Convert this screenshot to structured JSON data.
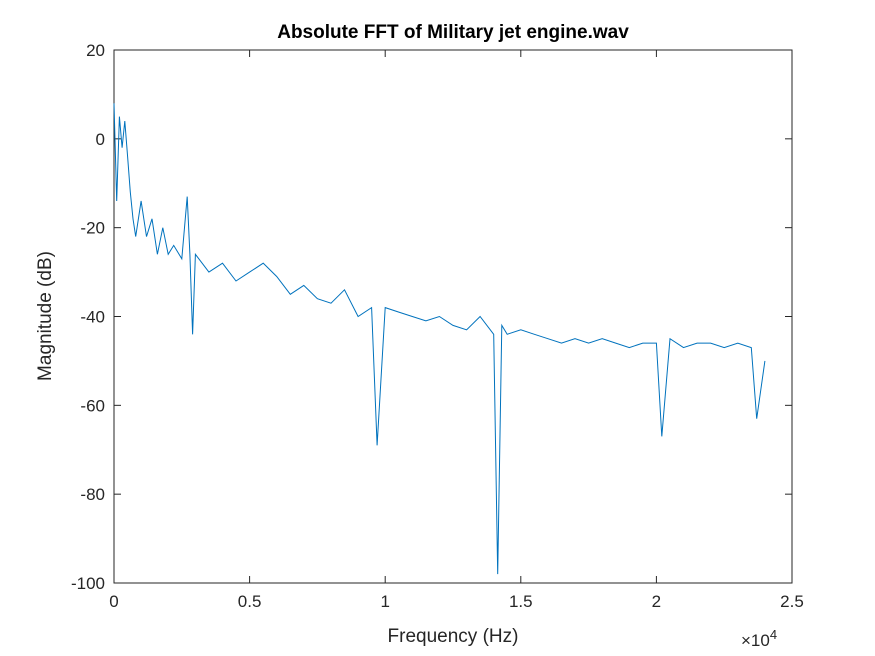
{
  "chart_data": {
    "type": "line",
    "title": "Absolute FFT of Military jet engine.wav",
    "xlabel": "Frequency (Hz)",
    "ylabel": "Magnitude (dB)",
    "xlim": [
      0,
      25000
    ],
    "ylim": [
      -100,
      20
    ],
    "x_ticks": [
      0,
      5000,
      10000,
      15000,
      20000,
      25000
    ],
    "x_tick_labels": [
      "0",
      "0.5",
      "1",
      "1.5",
      "2",
      "2.5"
    ],
    "x_exponent_label": "×10",
    "x_exponent_power": "4",
    "y_ticks": [
      20,
      0,
      -20,
      -40,
      -60,
      -80,
      -100
    ],
    "y_tick_labels": [
      "20",
      "0",
      "-20",
      "-40",
      "-60",
      "-80",
      "-100"
    ],
    "grid": false,
    "legend": "none",
    "colors": {
      "series": "#0072BD",
      "axis": "#262626"
    },
    "series": [
      {
        "x": [
          0,
          100,
          200,
          300,
          400,
          500,
          600,
          700,
          800,
          1000,
          1200,
          1400,
          1600,
          1800,
          2000,
          2200,
          2500,
          2700,
          2800,
          2900,
          3000,
          3500,
          4000,
          4500,
          5000,
          5500,
          6000,
          6500,
          7000,
          7500,
          8000,
          8500,
          9000,
          9500,
          9700,
          10000,
          10500,
          11000,
          11500,
          12000,
          12500,
          13000,
          13500,
          14000,
          14150,
          14300,
          14500,
          15000,
          15500,
          16000,
          16500,
          17000,
          17500,
          18000,
          18500,
          19000,
          19500,
          20000,
          20200,
          20500,
          21000,
          21500,
          22000,
          22500,
          23000,
          23500,
          23700,
          24000
        ],
        "y": [
          8,
          -14,
          5,
          -2,
          4,
          -4,
          -12,
          -18,
          -22,
          -14,
          -22,
          -18,
          -26,
          -20,
          -26,
          -24,
          -27,
          -13,
          -26,
          -44,
          -26,
          -30,
          -28,
          -32,
          -30,
          -28,
          -31,
          -35,
          -33,
          -36,
          -37,
          -34,
          -40,
          -38,
          -69,
          -38,
          -39,
          -40,
          -41,
          -40,
          -42,
          -43,
          -40,
          -44,
          -98,
          -42,
          -44,
          -43,
          -44,
          -45,
          -46,
          -45,
          -46,
          -45,
          -46,
          -47,
          -46,
          -46,
          -67,
          -45,
          -47,
          -46,
          -46,
          -47,
          -46,
          -47,
          -63,
          -50
        ]
      }
    ]
  }
}
